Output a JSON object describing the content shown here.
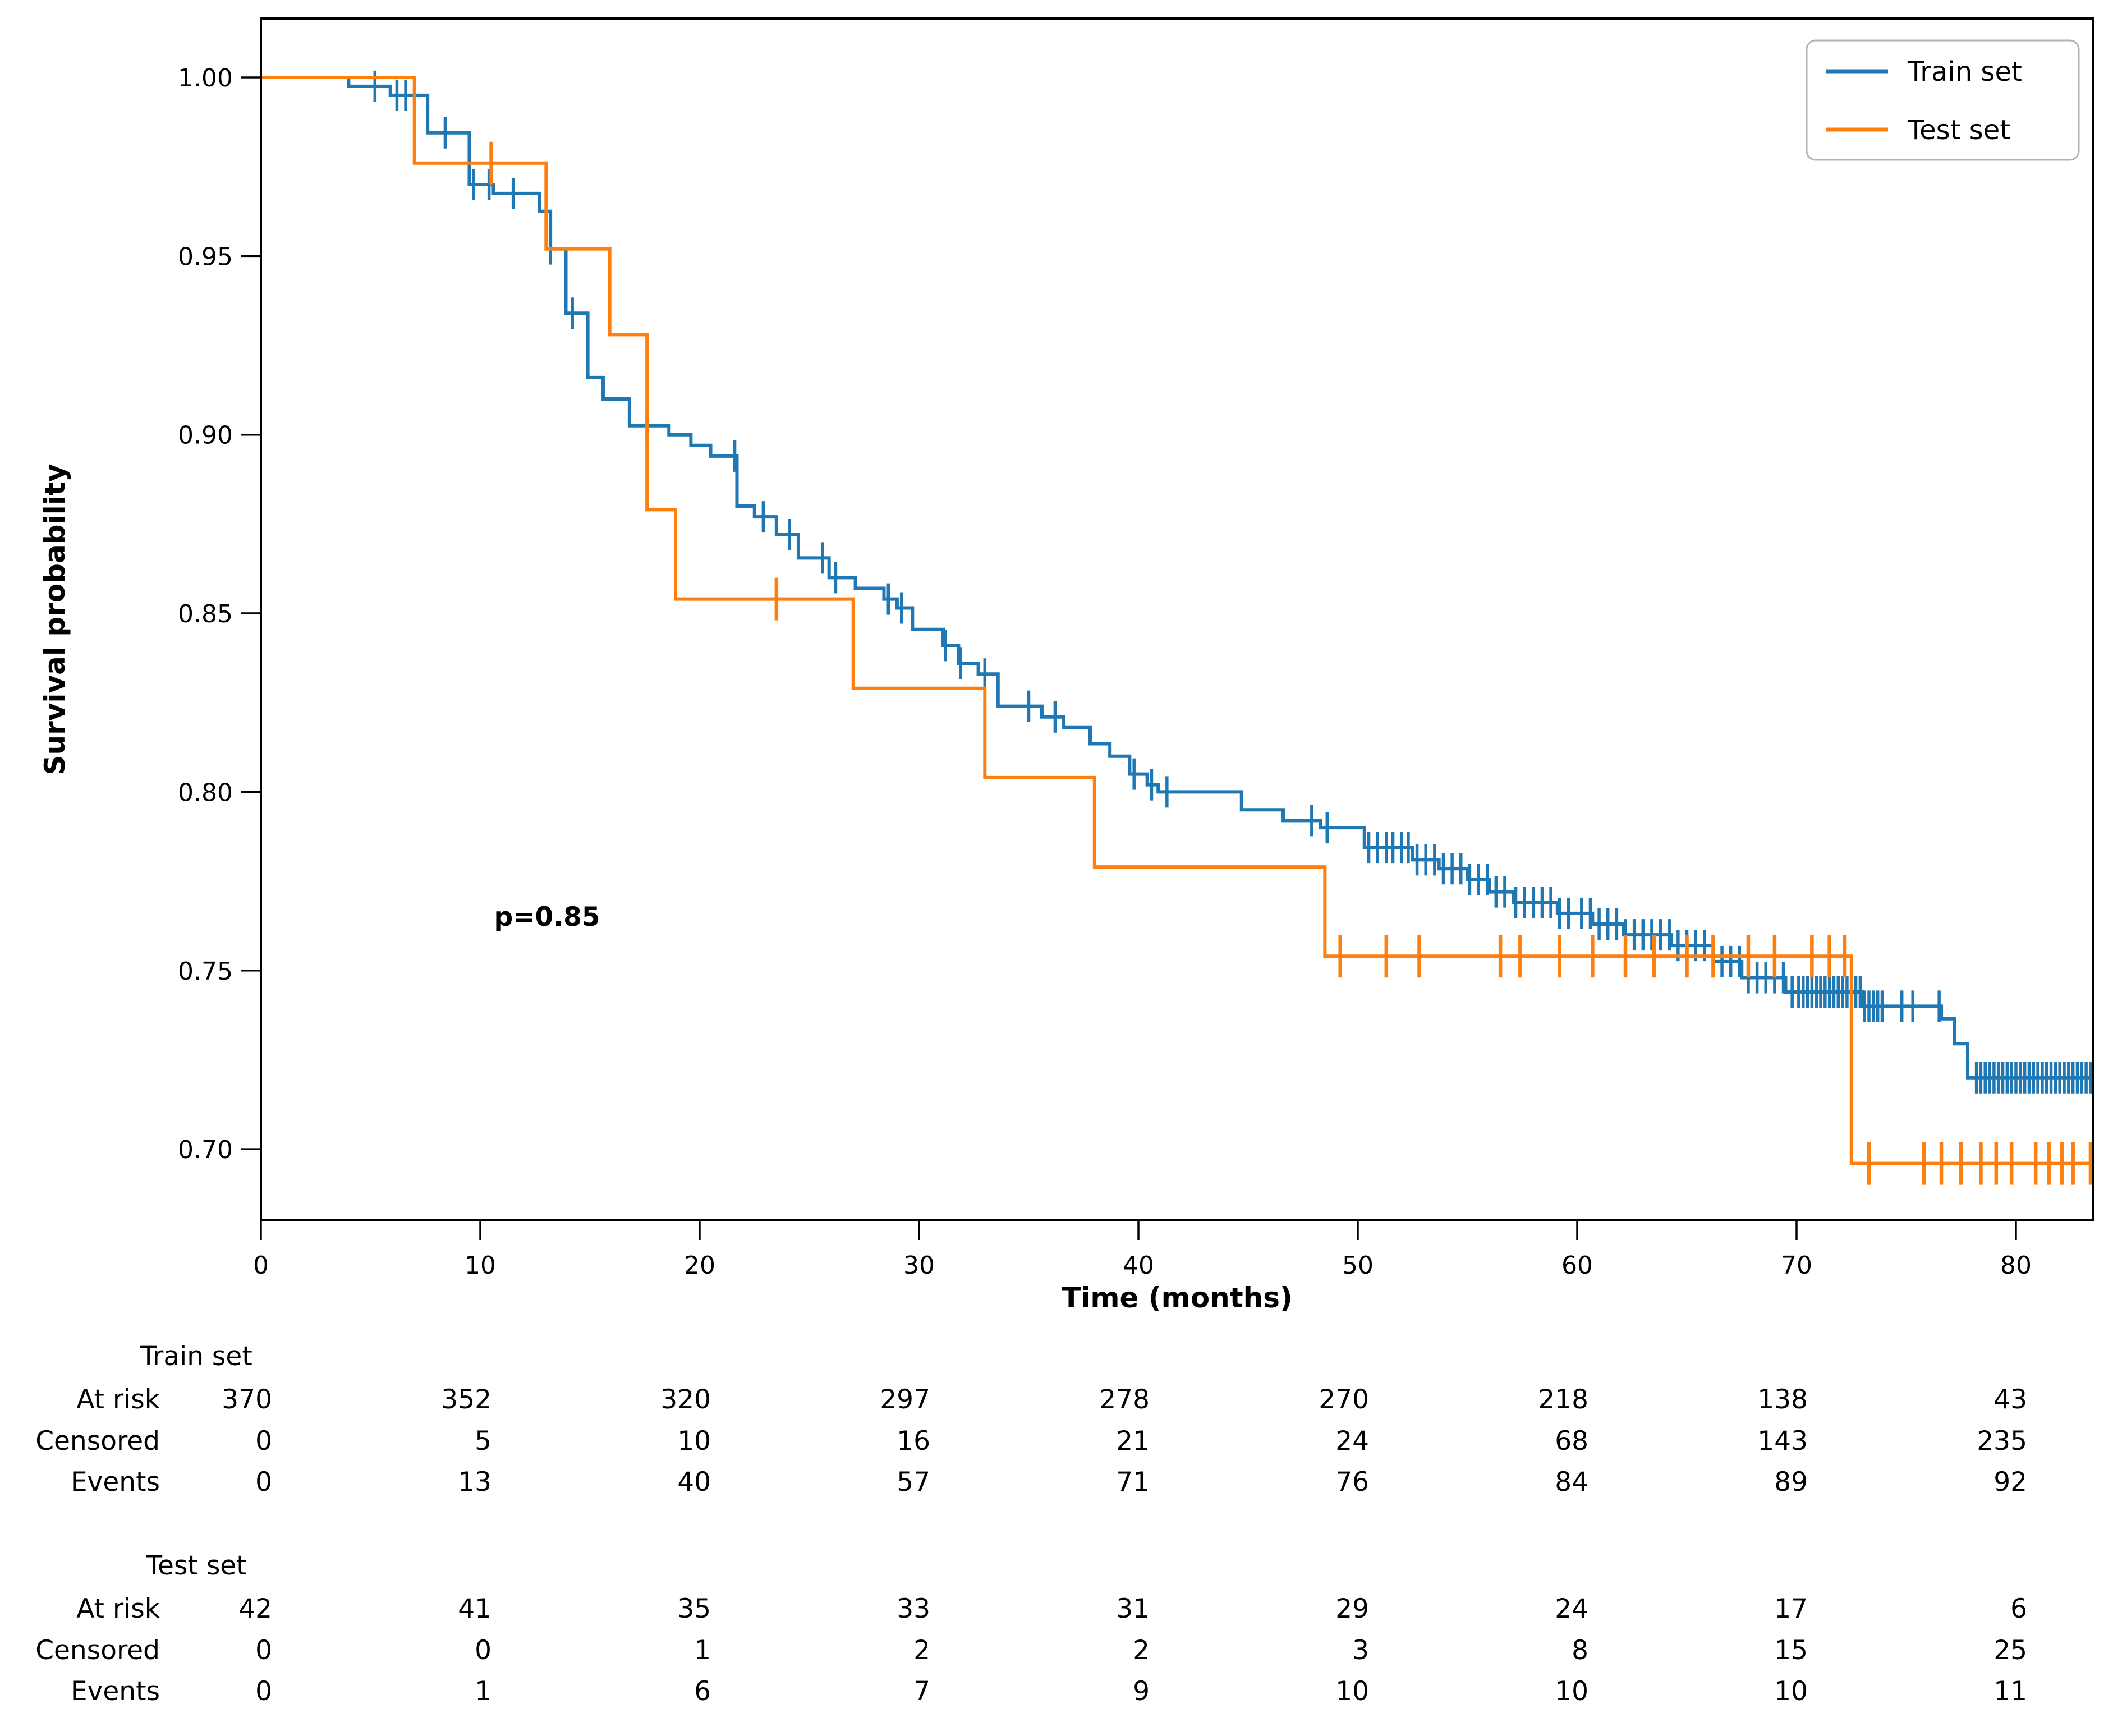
{
  "chart_data": {
    "type": "line",
    "subtype": "kaplan-meier-step-survival",
    "title": "",
    "xlabel": "Time (months)",
    "ylabel": "Survival probability",
    "xlim": [
      0,
      83.5
    ],
    "ylim": [
      0.68,
      1.017
    ],
    "grid": false,
    "x_ticks": [
      0,
      10,
      20,
      30,
      40,
      50,
      60,
      70,
      80
    ],
    "y_ticks": [
      "0.70",
      "0.75",
      "0.80",
      "0.85",
      "0.90",
      "0.95",
      "1.00"
    ],
    "annotation": {
      "text": "p=0.85",
      "x": 13.0,
      "y": 0.765
    },
    "legend": {
      "position": "upper right",
      "entries": [
        "Train set",
        "Test set"
      ]
    },
    "series": [
      {
        "name": "Train set",
        "color": "#1f77b4",
        "steps": [
          [
            0,
            1.0
          ],
          [
            4.0,
            0.9975
          ],
          [
            5.9,
            0.995
          ],
          [
            7.6,
            0.9845
          ],
          [
            9.5,
            0.97
          ],
          [
            10.6,
            0.9675
          ],
          [
            12.7,
            0.9625
          ],
          [
            13.2,
            0.952
          ],
          [
            13.9,
            0.934
          ],
          [
            14.9,
            0.916
          ],
          [
            15.6,
            0.91
          ],
          [
            16.8,
            0.9025
          ],
          [
            18.6,
            0.9
          ],
          [
            19.6,
            0.897
          ],
          [
            20.5,
            0.894
          ],
          [
            21.7,
            0.88
          ],
          [
            22.5,
            0.877
          ],
          [
            23.5,
            0.872
          ],
          [
            24.5,
            0.8655
          ],
          [
            25.9,
            0.86
          ],
          [
            27.1,
            0.857
          ],
          [
            28.4,
            0.854
          ],
          [
            29.0,
            0.8515
          ],
          [
            29.7,
            0.8455
          ],
          [
            31.1,
            0.841
          ],
          [
            31.8,
            0.836
          ],
          [
            32.7,
            0.833
          ],
          [
            33.6,
            0.824
          ],
          [
            35.6,
            0.821
          ],
          [
            36.6,
            0.818
          ],
          [
            37.8,
            0.8135
          ],
          [
            38.7,
            0.81
          ],
          [
            39.6,
            0.805
          ],
          [
            40.4,
            0.802
          ],
          [
            40.9,
            0.8
          ],
          [
            44.7,
            0.795
          ],
          [
            46.6,
            0.792
          ],
          [
            48.3,
            0.79
          ],
          [
            50.3,
            0.7845
          ],
          [
            52.5,
            0.781
          ],
          [
            53.7,
            0.7785
          ],
          [
            55.0,
            0.7755
          ],
          [
            56.0,
            0.772
          ],
          [
            57.1,
            0.769
          ],
          [
            59.1,
            0.766
          ],
          [
            60.7,
            0.763
          ],
          [
            62.1,
            0.76
          ],
          [
            64.3,
            0.757
          ],
          [
            66.2,
            0.7525
          ],
          [
            67.5,
            0.748
          ],
          [
            69.5,
            0.744
          ],
          [
            73.0,
            0.74
          ],
          [
            76.6,
            0.7365
          ],
          [
            77.2,
            0.7295
          ],
          [
            77.8,
            0.72
          ]
        ],
        "censor_times": [
          5.2,
          6.2,
          6.6,
          8.4,
          9.7,
          10.4,
          11.5,
          13.2,
          14.2,
          17.6,
          21.6,
          22.9,
          24.1,
          25.6,
          26.2,
          28.6,
          29.2,
          31.2,
          31.9,
          33.0,
          35.0,
          36.2,
          39.8,
          40.6,
          41.3,
          47.9,
          48.6,
          50.5,
          50.9,
          51.3,
          51.6,
          52.0,
          52.3,
          52.7,
          53.1,
          53.5,
          53.9,
          54.3,
          54.7,
          55.1,
          55.5,
          55.9,
          56.3,
          56.7,
          57.2,
          57.6,
          58.0,
          58.4,
          58.8,
          59.2,
          59.6,
          60.2,
          60.6,
          61.0,
          61.4,
          61.8,
          62.2,
          62.6,
          63.0,
          63.4,
          63.8,
          64.2,
          64.6,
          65.0,
          65.4,
          65.8,
          66.2,
          66.6,
          67.0,
          67.4,
          67.8,
          68.2,
          68.6,
          69.0,
          69.4,
          69.8,
          70.1,
          70.3,
          70.5,
          70.7,
          70.9,
          71.1,
          71.3,
          71.5,
          71.7,
          71.9,
          72.1,
          72.3,
          72.5,
          72.7,
          72.9,
          73.1,
          73.3,
          73.5,
          73.7,
          73.9,
          74.8,
          75.3,
          76.5,
          78.2,
          78.4,
          78.6,
          78.8,
          79.0,
          79.2,
          79.4,
          79.6,
          79.8,
          80.0,
          80.2,
          80.4,
          80.6,
          80.8,
          81.0,
          81.2,
          81.4,
          81.6,
          81.8,
          82.0,
          82.2,
          82.4,
          82.6,
          82.8,
          83.0,
          83.2,
          83.4
        ]
      },
      {
        "name": "Test set",
        "color": "#ff7f0e",
        "steps": [
          [
            0,
            1.0
          ],
          [
            7,
            0.976
          ],
          [
            13,
            0.952
          ],
          [
            15.9,
            0.928
          ],
          [
            17.6,
            0.879
          ],
          [
            18.9,
            0.854
          ],
          [
            27,
            0.829
          ],
          [
            33,
            0.804
          ],
          [
            38,
            0.779
          ],
          [
            48.5,
            0.754
          ],
          [
            72.5,
            0.696
          ]
        ],
        "censor_times": [
          10.5,
          23.5,
          49.2,
          51.3,
          52.8,
          56.5,
          57.4,
          59.2,
          60.7,
          62.2,
          63.5,
          65.0,
          66.2,
          67.8,
          69.0,
          70.7,
          71.5,
          72.2,
          73.3,
          75.8,
          76.6,
          77.5,
          78.4,
          79.1,
          79.8,
          80.9,
          81.5,
          82.1,
          82.6,
          83.4
        ]
      }
    ]
  },
  "risk_table": {
    "time_points": [
      0,
      10,
      20,
      30,
      40,
      50,
      60,
      70,
      80
    ],
    "row_labels": [
      "At risk",
      "Censored",
      "Events"
    ],
    "groups": [
      {
        "name": "Train set",
        "at_risk": [
          370,
          352,
          320,
          297,
          278,
          270,
          218,
          138,
          43
        ],
        "censored": [
          0,
          5,
          10,
          16,
          21,
          24,
          68,
          143,
          235
        ],
        "events": [
          0,
          13,
          40,
          57,
          71,
          76,
          84,
          89,
          92
        ]
      },
      {
        "name": "Test set",
        "at_risk": [
          42,
          41,
          35,
          33,
          31,
          29,
          24,
          17,
          6
        ],
        "censored": [
          0,
          0,
          1,
          2,
          2,
          3,
          8,
          15,
          25
        ],
        "events": [
          0,
          1,
          6,
          7,
          9,
          10,
          10,
          10,
          11
        ]
      }
    ]
  },
  "colors": {
    "train": "#1f77b4",
    "test": "#ff7f0e",
    "spine": "#000000",
    "legend_border": "#b3b3b3",
    "text": "#000000"
  }
}
